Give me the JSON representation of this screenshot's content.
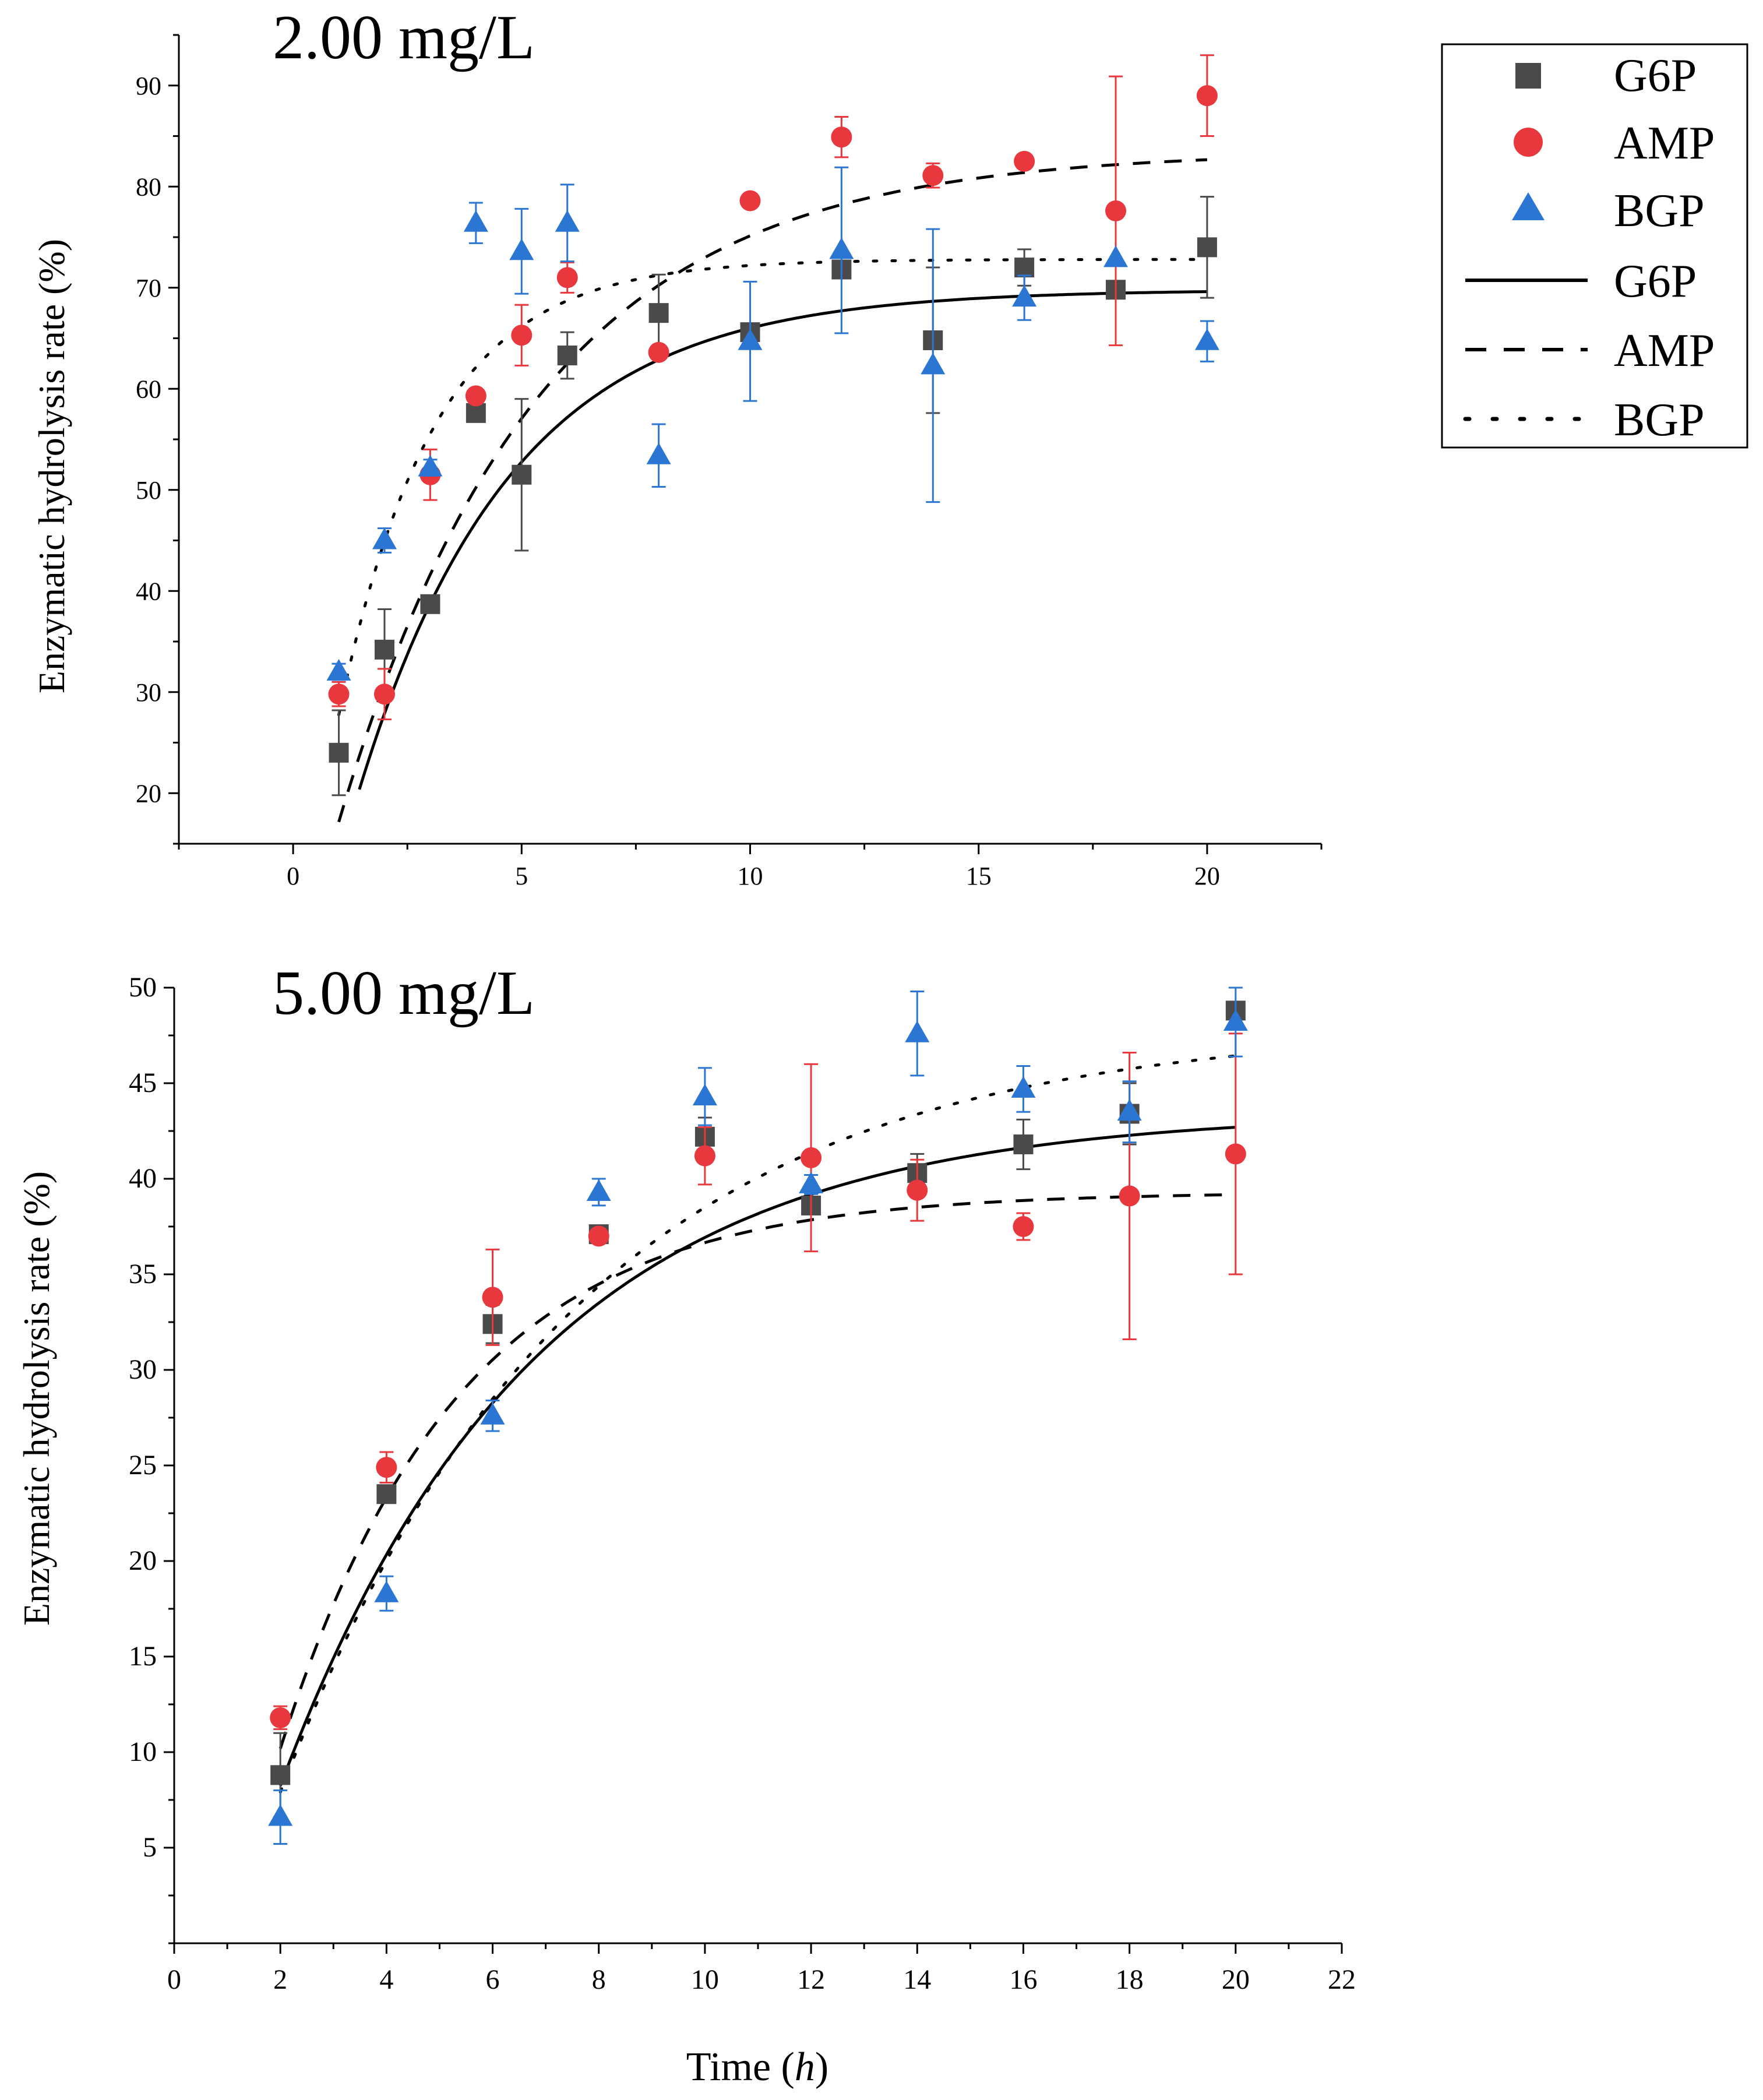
{
  "colors": {
    "G6P": "#4a4a4a",
    "AMP": "#e8383d",
    "BGP": "#2a76d2",
    "axis": "#000000"
  },
  "legend": {
    "placement": "top-right",
    "scatter_entries": [
      {
        "label": "G6P",
        "marker": "square",
        "color_key": "G6P"
      },
      {
        "label": "AMP",
        "marker": "circle",
        "color_key": "AMP"
      },
      {
        "label": "BGP",
        "marker": "triangle",
        "color_key": "BGP"
      }
    ],
    "line_entries": [
      {
        "label": "G6P",
        "dash": "solid"
      },
      {
        "label": "AMP",
        "dash": "dashed"
      },
      {
        "label": "BGP",
        "dash": "dotted"
      }
    ]
  },
  "chart_data": [
    {
      "type": "scatter",
      "title": "2.00 mg/L",
      "ylabel": "Enzymatic hydrolysis rate (%)",
      "xlabel": "",
      "xlim": [
        -2.5,
        22.5
      ],
      "ylim": [
        15,
        95
      ],
      "xticks": [
        0,
        5,
        10,
        15,
        20
      ],
      "yticks": [
        20,
        30,
        40,
        50,
        60,
        70,
        80,
        90
      ],
      "series": [
        {
          "name": "G6P",
          "marker": "square",
          "color_key": "G6P",
          "points": [
            [
              1,
              24.0,
              4.2
            ],
            [
              2,
              34.2,
              4.0
            ],
            [
              3,
              38.7,
              0
            ],
            [
              4,
              57.6,
              0.8
            ],
            [
              5,
              51.5,
              7.5
            ],
            [
              6,
              63.3,
              2.3
            ],
            [
              8,
              67.5,
              3.8
            ],
            [
              10,
              65.6,
              0
            ],
            [
              12,
              71.8,
              0
            ],
            [
              14,
              64.8,
              7.2
            ],
            [
              16,
              72.0,
              1.8
            ],
            [
              18,
              69.8,
              0
            ],
            [
              20,
              74.0,
              5.0
            ]
          ]
        },
        {
          "name": "AMP",
          "marker": "circle",
          "color_key": "AMP",
          "points": [
            [
              1,
              29.8,
              1.2
            ],
            [
              2,
              29.8,
              2.5
            ],
            [
              3,
              51.5,
              2.5
            ],
            [
              4,
              59.3,
              0
            ],
            [
              5,
              65.3,
              3.0
            ],
            [
              6,
              71.0,
              1.5
            ],
            [
              8,
              63.6,
              0
            ],
            [
              10,
              78.6,
              0
            ],
            [
              12,
              84.9,
              2.0
            ],
            [
              14,
              81.1,
              1.2
            ],
            [
              16,
              82.5,
              0
            ],
            [
              18,
              77.6,
              13.3
            ],
            [
              20,
              89.0,
              4.0
            ]
          ]
        },
        {
          "name": "BGP",
          "marker": "triangle",
          "color_key": "BGP",
          "points": [
            [
              1,
              32.0,
              0.8
            ],
            [
              2,
              45.0,
              1.2
            ],
            [
              3,
              52.2,
              0.8
            ],
            [
              4,
              76.4,
              2.0
            ],
            [
              5,
              73.6,
              4.2
            ],
            [
              6,
              76.4,
              3.8
            ],
            [
              8,
              53.4,
              3.1
            ],
            [
              10,
              64.7,
              5.9
            ],
            [
              12,
              73.7,
              8.2
            ],
            [
              14,
              62.3,
              13.5
            ],
            [
              16,
              69.0,
              2.2
            ],
            [
              18,
              72.9,
              0
            ],
            [
              20,
              64.7,
              2.0
            ]
          ]
        }
      ],
      "fits": [
        {
          "name": "G6P",
          "dash": "solid",
          "model": "A*(1-exp(-k*(t-t0)))",
          "A": 69.8,
          "k": 0.3,
          "t0": 0.3,
          "x_from": 1.45,
          "x_to": 20
        },
        {
          "name": "AMP",
          "dash": "dashed",
          "model": "A*(1-exp(-k*(t-t0)))",
          "A": 83.5,
          "k": 0.23,
          "t0": 0,
          "x_from": 1,
          "x_to": 20
        },
        {
          "name": "BGP",
          "dash": "dotted",
          "model": "A*(1-exp(-k*(t-t0)))",
          "A": 72.8,
          "k": 0.48,
          "t0": 0,
          "x_from": 1,
          "x_to": 20
        }
      ]
    },
    {
      "type": "scatter",
      "title": "5.00 mg/L",
      "ylabel": "Enzymatic hydrolysis rate (%)",
      "xlabel": "Time (h)",
      "xlabel_main": "Time (",
      "xlabel_italic": "h",
      "xlabel_close": ")",
      "xlim": [
        0,
        22
      ],
      "ylim": [
        0,
        50
      ],
      "xticks": [
        0,
        2,
        4,
        6,
        8,
        10,
        12,
        14,
        16,
        18,
        20,
        22
      ],
      "yticks": [
        5,
        10,
        15,
        20,
        25,
        30,
        35,
        40,
        45,
        50
      ],
      "series": [
        {
          "name": "G6P",
          "marker": "square",
          "color_key": "G6P",
          "points": [
            [
              2,
              8.8,
              2.2
            ],
            [
              4,
              23.5,
              0
            ],
            [
              6,
              32.4,
              1.0
            ],
            [
              8,
              37.1,
              0
            ],
            [
              10,
              42.2,
              1.0
            ],
            [
              12,
              38.6,
              0
            ],
            [
              14,
              40.3,
              1.0
            ],
            [
              16,
              41.8,
              1.3
            ],
            [
              18,
              43.4,
              1.6
            ],
            [
              20,
              48.8,
              0
            ]
          ]
        },
        {
          "name": "AMP",
          "marker": "circle",
          "color_key": "AMP",
          "points": [
            [
              2,
              11.8,
              0.6
            ],
            [
              4,
              24.9,
              0.8
            ],
            [
              6,
              33.8,
              2.5
            ],
            [
              8,
              37.0,
              0
            ],
            [
              10,
              41.2,
              1.5
            ],
            [
              12,
              41.1,
              4.9
            ],
            [
              14,
              39.4,
              1.6
            ],
            [
              16,
              37.5,
              0.7
            ],
            [
              18,
              39.1,
              7.5
            ],
            [
              20,
              41.3,
              6.3
            ]
          ]
        },
        {
          "name": "BGP",
          "marker": "triangle",
          "color_key": "BGP",
          "points": [
            [
              2,
              6.6,
              1.4
            ],
            [
              4,
              18.3,
              0.9
            ],
            [
              6,
              27.6,
              0.8
            ],
            [
              8,
              39.3,
              0.7
            ],
            [
              10,
              44.3,
              1.5
            ],
            [
              12,
              39.7,
              0.5
            ],
            [
              14,
              47.6,
              2.2
            ],
            [
              16,
              44.7,
              1.2
            ],
            [
              18,
              43.5,
              1.6
            ],
            [
              20,
              48.2,
              1.8
            ]
          ]
        }
      ],
      "fits": [
        {
          "name": "G6P",
          "dash": "solid",
          "model": "A*(1-exp(-k*(t-t0)))",
          "A": 43.5,
          "k": 0.21,
          "t0": 1.0,
          "x_from": 2,
          "x_to": 20
        },
        {
          "name": "AMP",
          "dash": "dashed",
          "model": "A*(1-exp(-k*(t-t0)))",
          "A": 39.3,
          "k": 0.3,
          "t0": 1.0,
          "x_from": 2,
          "x_to": 20
        },
        {
          "name": "BGP",
          "dash": "dotted",
          "model": "A*(1-exp(-k*(t-t0)))",
          "A": 48.0,
          "k": 0.18,
          "t0": 1.0,
          "x_from": 2,
          "x_to": 20
        }
      ]
    }
  ]
}
